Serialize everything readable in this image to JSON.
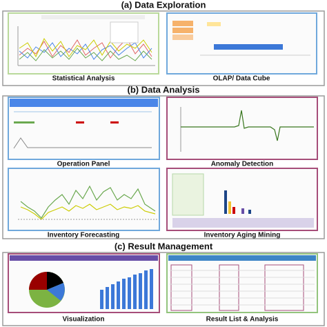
{
  "sections": [
    {
      "title": "(a) Data Exploration",
      "panels": [
        {
          "caption": "Statistical Analysis"
        },
        {
          "caption": "OLAP/ Data Cube"
        }
      ]
    },
    {
      "title": "(b) Data Analysis",
      "panels": [
        {
          "caption": "Operation Panel"
        },
        {
          "caption": "Anomaly Detection"
        },
        {
          "caption": "Inventory Forecasting"
        },
        {
          "caption": "Inventory Aging Mining"
        }
      ]
    },
    {
      "title": "(c) Result Management",
      "panels": [
        {
          "caption": "Visualization"
        },
        {
          "caption": "Result List & Analysis"
        }
      ]
    }
  ]
}
